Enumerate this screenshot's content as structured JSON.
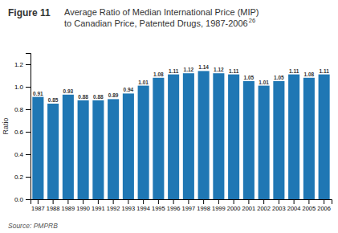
{
  "chart_data": {
    "type": "bar",
    "title": "Figure 11",
    "subtitle": [
      "Average Ratio of Median International Price (MIP)",
      "to Canadian Price, Patented Drugs, 1987-2006"
    ],
    "annotations": [
      "26",
      "Source: PMPRB"
    ],
    "ylabel": "Ratio",
    "categories": [
      "1987",
      "1988",
      "1989",
      "1990",
      "1991",
      "1992",
      "1993",
      "1994",
      "1995",
      "1996",
      "1997",
      "1998",
      "1999",
      "2000",
      "2001",
      "2002",
      "2003",
      "2004",
      "2005",
      "2006"
    ],
    "values": [
      0.91,
      0.85,
      0.93,
      0.88,
      0.88,
      0.89,
      0.94,
      1.01,
      1.08,
      1.11,
      1.12,
      1.14,
      1.12,
      1.11,
      1.05,
      1.01,
      1.05,
      1.11,
      1.08,
      1.11
    ],
    "ylim": [
      0.0,
      1.3
    ],
    "yticks": [
      {
        "value": 0,
        "label": "0.0"
      },
      0.2,
      0.4,
      0.6,
      0.8,
      {
        "value": 1,
        "label": "1.0"
      },
      1.2
    ],
    "data_labels": true,
    "grid": false
  }
}
